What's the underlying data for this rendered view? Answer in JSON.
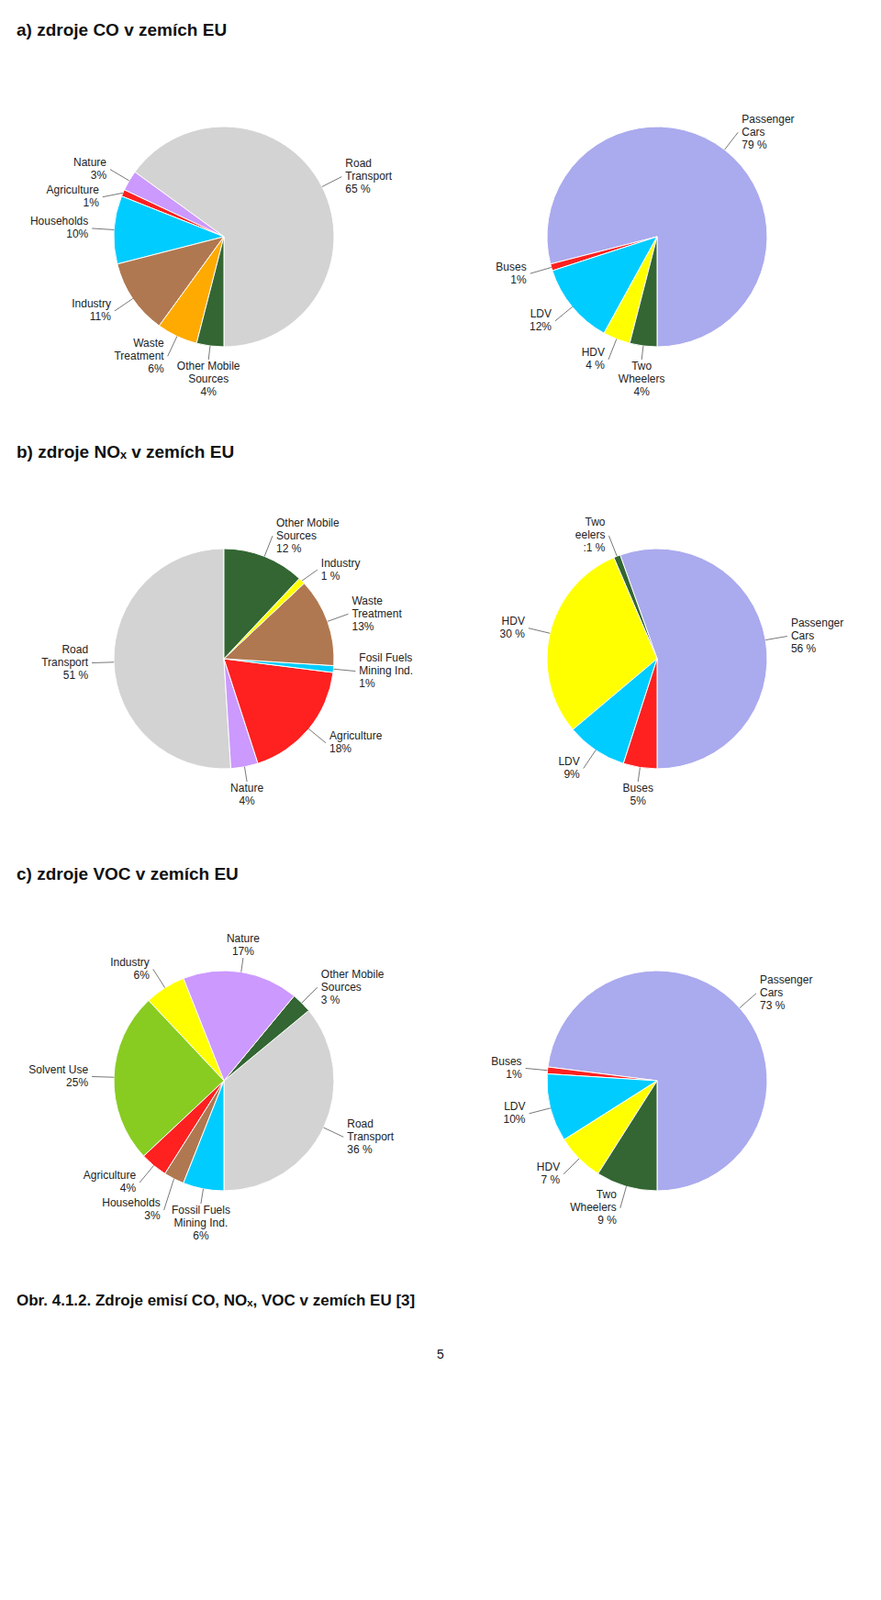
{
  "chart_data": [
    {
      "type": "pie",
      "title": "a) zdroje CO v zemích EU",
      "categories": [
        "Road\nTransport",
        "Nature",
        "Agriculture",
        "Households",
        "Industry",
        "Waste\nTreatment",
        "Other Mobile\nSources"
      ],
      "values": [
        65,
        3,
        1,
        10,
        11,
        6,
        4
      ],
      "value_labels": [
        "65 %",
        "3%",
        "1%",
        "10%",
        "11%",
        "6%",
        "4%"
      ],
      "colors": [
        "#d3d3d3",
        "#cc99ff",
        "#ff2020",
        "#00ccff",
        "#b07850",
        "#ffaa00",
        "#336633"
      ],
      "data_labels": true
    },
    {
      "type": "pie",
      "categories": [
        "Passenger\nCars",
        "Buses",
        "LDV",
        "HDV",
        "Two\nWheelers"
      ],
      "values": [
        79,
        1,
        12,
        4,
        4
      ],
      "value_labels": [
        "79 %",
        "1%",
        "12%",
        "4 %",
        "4%"
      ],
      "colors": [
        "#aaaaee",
        "#ff2020",
        "#00ccff",
        "#ffff00",
        "#336633"
      ],
      "data_labels": true
    },
    {
      "type": "pie",
      "title": "b) zdroje NOₓ v zemích EU",
      "categories": [
        "Road\nTransport",
        "Nature",
        "Agriculture",
        "Fosil Fuels\nMining Ind.",
        "Waste\nTreatment",
        "Industry",
        "Other Mobile\nSources"
      ],
      "values": [
        51,
        4,
        18,
        1,
        13,
        1,
        12
      ],
      "value_labels": [
        "51 %",
        "4%",
        "18%",
        "1%",
        "13%",
        "1 %",
        "12 %"
      ],
      "colors": [
        "#d3d3d3",
        "#cc99ff",
        "#ff2020",
        "#00ccff",
        "#b07850",
        "#ffff00",
        "#336633"
      ],
      "data_labels": true
    },
    {
      "type": "pie",
      "categories": [
        "Passenger\nCars",
        "Two\neelers",
        "HDV",
        "LDV",
        "Buses"
      ],
      "values": [
        56,
        1,
        30,
        9,
        5
      ],
      "value_labels": [
        "56 %",
        ":1 %",
        "30 %",
        "9%",
        "5%"
      ],
      "colors": [
        "#aaaaee",
        "#336633",
        "#ffff00",
        "#00ccff",
        "#ff2020"
      ],
      "data_labels": true
    },
    {
      "type": "pie",
      "title": "c) zdroje VOC v zemích EU",
      "categories": [
        "Road\nTransport",
        "Other Mobile\nSources",
        "Nature",
        "Industry",
        "Solvent Use",
        "Agriculture",
        "Households",
        "Fossil Fuels\nMining Ind."
      ],
      "values": [
        36,
        3,
        17,
        6,
        25,
        4,
        3,
        6
      ],
      "value_labels": [
        "36 %",
        "3 %",
        "17%",
        "6%",
        "25%",
        "4%",
        "3%",
        "6%"
      ],
      "colors": [
        "#d3d3d3",
        "#336633",
        "#cc99ff",
        "#ffff00",
        "#88cc22",
        "#ff2020",
        "#b07850",
        "#00ccff"
      ],
      "data_labels": true
    },
    {
      "type": "pie",
      "categories": [
        "Passenger\nCars",
        "Buses",
        "LDV",
        "HDV",
        "Two\nWheelers"
      ],
      "values": [
        73,
        1,
        10,
        7,
        9
      ],
      "value_labels": [
        "73 %",
        "1%",
        "10%",
        "7 %",
        "9 %"
      ],
      "colors": [
        "#aaaaee",
        "#ff2020",
        "#00ccff",
        "#ffff00",
        "#336633"
      ],
      "data_labels": true
    }
  ],
  "annotations": [
    "Obr. 4.1.2. Zdroje emisí CO, NOₓ, VOC v zemích EU [3]",
    "5"
  ]
}
